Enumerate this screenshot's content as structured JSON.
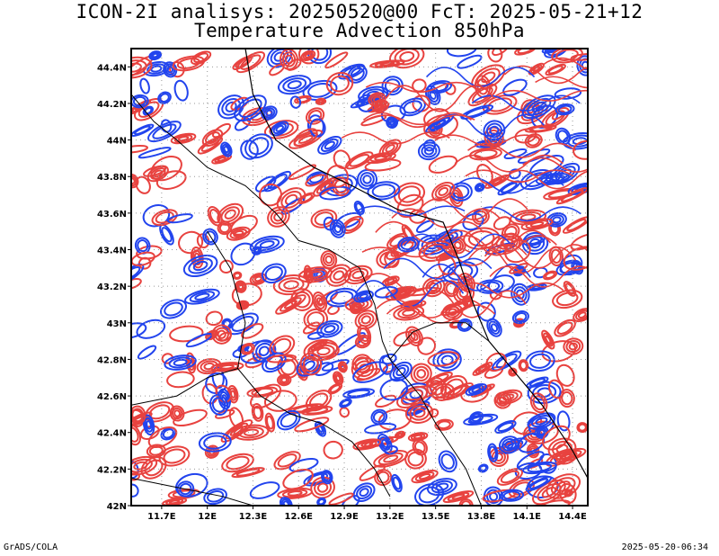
{
  "title": {
    "line1": "ICON-2I analisys: 20250520@00 FcT: 2025-05-21+12",
    "line2": "Temperature Advection 850hPa"
  },
  "map": {
    "lat_labels": [
      "44.4N",
      "44.2N",
      "44N",
      "43.8N",
      "43.6N",
      "43.4N",
      "43.2N",
      "43N",
      "42.8N",
      "42.6N",
      "42.4N",
      "42.2N",
      "42N"
    ],
    "lon_labels": [
      "11.7E",
      "12E",
      "12.3E",
      "12.6E",
      "12.9E",
      "13.2E",
      "13.5E",
      "13.8E",
      "14.1E",
      "14.4E"
    ],
    "lat_range": [
      42.0,
      44.5
    ],
    "lon_range": [
      11.5,
      14.5
    ],
    "gridlines": "dotted",
    "colors": {
      "warm_advection": "#e8423f",
      "cold_advection": "#2244ee",
      "border": "#000000",
      "frame": "#000000"
    }
  },
  "footer": {
    "left": "GrADS/COLA",
    "right": "2025-05-20-06:34"
  }
}
